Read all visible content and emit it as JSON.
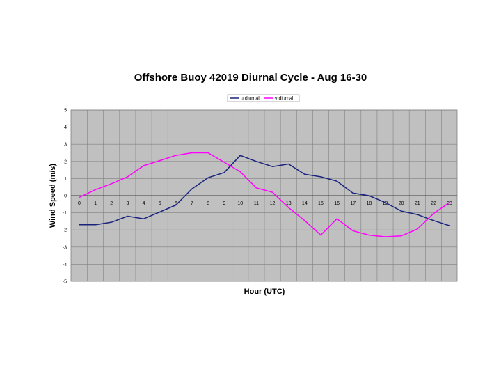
{
  "chart_data": {
    "type": "line",
    "title": "Offshore Buoy 42019 Diurnal Cycle - Aug 16-30",
    "xlabel": "Hour (UTC)",
    "ylabel": "Wind Speed (m/s)",
    "x": [
      0,
      1,
      2,
      3,
      4,
      5,
      6,
      7,
      8,
      9,
      10,
      11,
      12,
      13,
      14,
      15,
      16,
      17,
      18,
      19,
      20,
      21,
      22,
      23
    ],
    "xticks": [
      "0",
      "1",
      "2",
      "3",
      "4",
      "5",
      "6",
      "7",
      "8",
      "9",
      "10",
      "11",
      "12",
      "13",
      "14",
      "15",
      "16",
      "17",
      "18",
      "19",
      "20",
      "21",
      "22",
      "23"
    ],
    "ylim": [
      -5,
      5
    ],
    "yticks": [
      "5",
      "4",
      "3",
      "2",
      "1",
      "0",
      "-1",
      "-2",
      "-3",
      "-4",
      "-5"
    ],
    "grid": true,
    "legend_position": "top-center",
    "series": [
      {
        "name": "u diurnal",
        "color": "#1a237e",
        "values": [
          -1.7,
          -1.7,
          -1.55,
          -1.2,
          -1.35,
          -0.95,
          -0.55,
          0.4,
          1.05,
          1.35,
          2.35,
          2.0,
          1.7,
          1.85,
          1.25,
          1.1,
          0.85,
          0.15,
          0.0,
          -0.4,
          -0.9,
          -1.1,
          -1.45,
          -1.75
        ]
      },
      {
        "name": "v diurnal",
        "color": "#ff00ff",
        "values": [
          -0.1,
          0.35,
          0.7,
          1.1,
          1.75,
          2.05,
          2.35,
          2.5,
          2.5,
          1.95,
          1.4,
          0.45,
          0.2,
          -0.7,
          -1.45,
          -2.3,
          -1.35,
          -2.05,
          -2.3,
          -2.4,
          -2.35,
          -1.95,
          -1.05,
          -0.4
        ]
      }
    ]
  }
}
